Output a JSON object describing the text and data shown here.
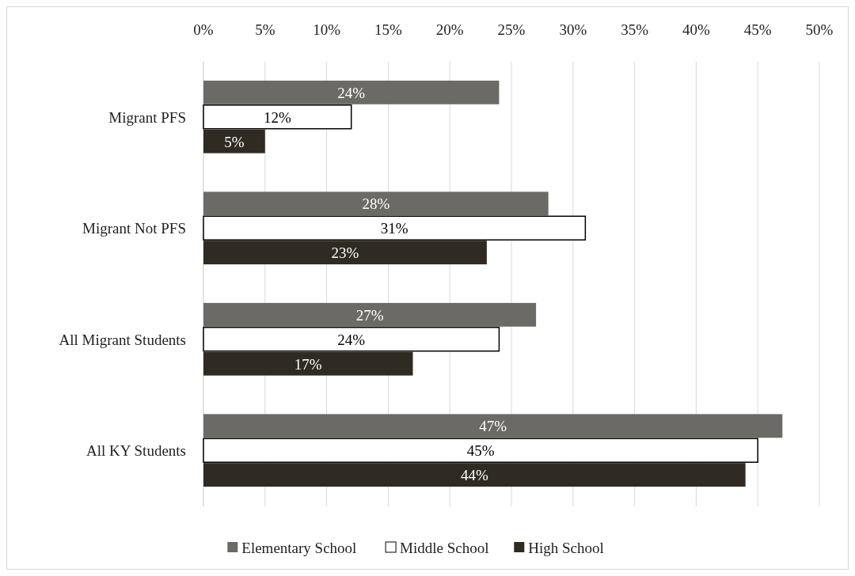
{
  "chart_data": {
    "type": "bar",
    "orientation": "horizontal",
    "categories": [
      "Migrant PFS",
      "Migrant Not PFS",
      "All Migrant Students",
      "All KY Students"
    ],
    "series": [
      {
        "name": "Elementary School",
        "color": "#6b6a66",
        "values": [
          24,
          28,
          27,
          47
        ],
        "value_labels": [
          "24%",
          "28%",
          "27%",
          "47%"
        ]
      },
      {
        "name": "Middle School",
        "color": "#ffffff",
        "values": [
          12,
          31,
          24,
          45
        ],
        "value_labels": [
          "12%",
          "31%",
          "24%",
          "45%"
        ]
      },
      {
        "name": "High School",
        "color": "#2f2a22",
        "values": [
          5,
          23,
          17,
          44
        ],
        "value_labels": [
          "5%",
          "23%",
          "17%",
          "44%"
        ]
      }
    ],
    "xlim": [
      0,
      50
    ],
    "xticks": [
      {
        "value": 0,
        "label": "0%"
      },
      {
        "value": 5,
        "label": "5%"
      },
      {
        "value": 10,
        "label": "10%"
      },
      {
        "value": 15,
        "label": "15%"
      },
      {
        "value": 20,
        "label": "20%"
      },
      {
        "value": 25,
        "label": "25%"
      },
      {
        "value": 30,
        "label": "30%"
      },
      {
        "value": 35,
        "label": "35%"
      },
      {
        "value": 40,
        "label": "40%"
      },
      {
        "value": 45,
        "label": "45%"
      },
      {
        "value": 50,
        "label": "50%"
      }
    ],
    "grid": "x",
    "legend": "bottom"
  }
}
